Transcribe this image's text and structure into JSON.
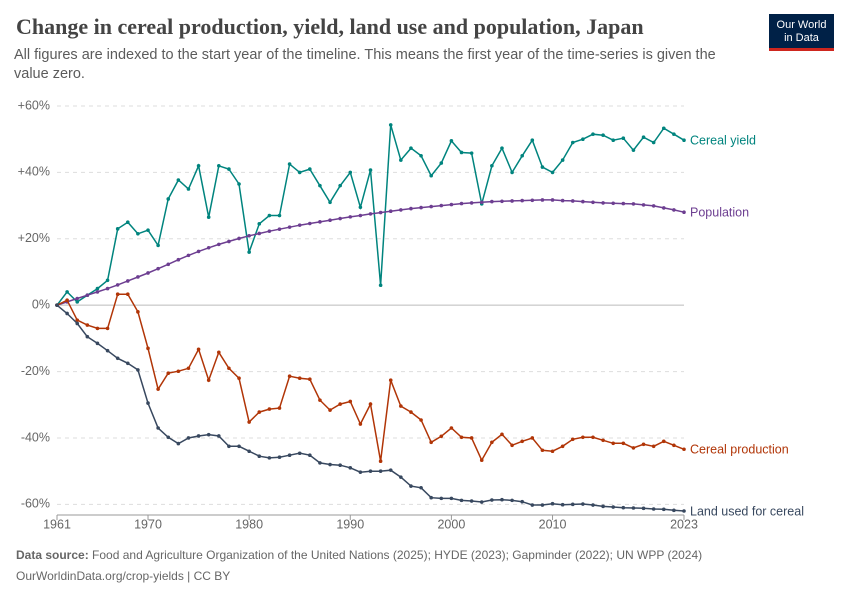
{
  "chart_data": {
    "type": "line",
    "title": "Change in cereal production, yield, land use and population, Japan",
    "subtitle": "All figures are indexed to the start year of the timeline. This means the first year of the time-series is given the value zero.",
    "logo": [
      "Our World",
      "in Data"
    ],
    "source_label": "Data source:",
    "source_text": "Food and Agriculture Organization of the United Nations (2025); HYDE (2023); Gapminder (2022); UN WPP (2024)",
    "footer": "OurWorldinData.org/crop-yields | CC BY",
    "x": [
      1961,
      1962,
      1963,
      1964,
      1965,
      1966,
      1967,
      1968,
      1969,
      1970,
      1971,
      1972,
      1973,
      1974,
      1975,
      1976,
      1977,
      1978,
      1979,
      1980,
      1981,
      1982,
      1983,
      1984,
      1985,
      1986,
      1987,
      1988,
      1989,
      1990,
      1991,
      1992,
      1993,
      1994,
      1995,
      1996,
      1997,
      1998,
      1999,
      2000,
      2001,
      2002,
      2003,
      2004,
      2005,
      2006,
      2007,
      2008,
      2009,
      2010,
      2011,
      2012,
      2013,
      2014,
      2015,
      2016,
      2017,
      2018,
      2019,
      2020,
      2021,
      2022,
      2023
    ],
    "xlim": [
      1961,
      2023
    ],
    "xticks": [
      1961,
      1970,
      1980,
      1990,
      2000,
      2010,
      2023
    ],
    "ylim": [
      -62,
      60
    ],
    "yticks": [
      {
        "value": 60,
        "label": "+60%"
      },
      {
        "value": 40,
        "label": "+40%"
      },
      {
        "value": 20,
        "label": "+20%"
      },
      {
        "value": 0,
        "label": "0%"
      },
      {
        "value": -20,
        "label": "-20%"
      },
      {
        "value": -40,
        "label": "-40%"
      },
      {
        "value": -60,
        "label": "-60%"
      }
    ],
    "grid": true,
    "series": [
      {
        "name": "Cereal yield",
        "color": "#00847e",
        "values": [
          0,
          4,
          1,
          3,
          5,
          7.5,
          23,
          25,
          21.5,
          22.6,
          18,
          32,
          37.7,
          35,
          42,
          26.5,
          42,
          41,
          36.5,
          16,
          24.5,
          27,
          27,
          42.5,
          40,
          41,
          36,
          31,
          36,
          40,
          29.5,
          40.7,
          6,
          54.3,
          43.7,
          47.3,
          45,
          39,
          42.8,
          49.5,
          46,
          45.8,
          30.5,
          42,
          47.3,
          40,
          45,
          49.7,
          41.6,
          40,
          43.7,
          49,
          50,
          51.5,
          51.2,
          49.7,
          50.3,
          46.7,
          50.6,
          49,
          53.3,
          51.5,
          49.7
        ]
      },
      {
        "name": "Population",
        "color": "#6d3e91",
        "values": [
          0,
          1,
          2,
          3,
          4,
          5,
          6.1,
          7.3,
          8.5,
          9.7,
          11,
          12.3,
          13.7,
          15,
          16.2,
          17.3,
          18.3,
          19.2,
          20.1,
          20.9,
          21.6,
          22.3,
          22.9,
          23.5,
          24.1,
          24.6,
          25.1,
          25.6,
          26.1,
          26.6,
          27,
          27.5,
          27.9,
          28.3,
          28.7,
          29.1,
          29.4,
          29.7,
          30,
          30.3,
          30.6,
          30.8,
          31,
          31.2,
          31.3,
          31.4,
          31.5,
          31.6,
          31.7,
          31.7,
          31.5,
          31.4,
          31.2,
          31,
          30.8,
          30.7,
          30.6,
          30.5,
          30.2,
          29.9,
          29.3,
          28.7,
          28
        ]
      },
      {
        "name": "Cereal production",
        "color": "#b13507",
        "values": [
          0,
          1.5,
          -4.5,
          -6,
          -7,
          -7,
          3.3,
          3.3,
          -2,
          -13,
          -25.3,
          -20.5,
          -19.9,
          -19,
          -13.3,
          -22.6,
          -14.2,
          -19,
          -22,
          -35.2,
          -32.2,
          -31.3,
          -31,
          -21.4,
          -22,
          -22.3,
          -28.6,
          -31.6,
          -29.8,
          -29,
          -35.8,
          -29.8,
          -47,
          -22.6,
          -30.4,
          -32.2,
          -34.6,
          -41.3,
          -39.5,
          -37,
          -39.8,
          -40,
          -46.7,
          -41.3,
          -38.9,
          -42.2,
          -41,
          -40,
          -43.7,
          -44,
          -42.5,
          -40.4,
          -39.8,
          -39.8,
          -40.7,
          -41.6,
          -41.6,
          -43,
          -41.9,
          -42.5,
          -41,
          -42.2,
          -43.4
        ]
      },
      {
        "name": "Land used for cereal",
        "color": "#38485f",
        "values": [
          0,
          -2.5,
          -5.5,
          -9.5,
          -11.5,
          -13.7,
          -16,
          -17.5,
          -19.5,
          -29.5,
          -37,
          -39.8,
          -41.7,
          -40,
          -39.4,
          -39,
          -39.4,
          -42.5,
          -42.5,
          -44,
          -45.5,
          -46,
          -45.8,
          -45.2,
          -44.6,
          -45.2,
          -47.5,
          -48,
          -48.2,
          -49,
          -50.3,
          -50,
          -50,
          -49.7,
          -51.8,
          -54.5,
          -55,
          -58,
          -58.2,
          -58.2,
          -58.8,
          -59,
          -59.3,
          -58.7,
          -58.6,
          -58.8,
          -59.2,
          -60.2,
          -60.2,
          -59.8,
          -60.1,
          -60,
          -59.9,
          -60.2,
          -60.6,
          -60.8,
          -61,
          -61.1,
          -61.2,
          -61.4,
          -61.5,
          -61.8,
          -62
        ]
      }
    ]
  }
}
